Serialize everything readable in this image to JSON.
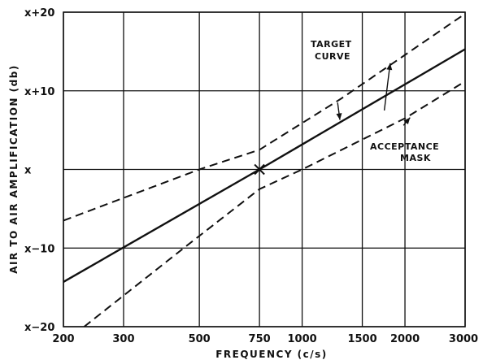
{
  "chart_data": {
    "type": "line",
    "title": "",
    "xlabel": "FREQUENCY (c/s)",
    "ylabel": "AIR TO AIR AMPLIFICATION (db)",
    "x_scale": "log",
    "xlim": [
      200,
      3000
    ],
    "ylim": [
      -20,
      20
    ],
    "grid": true,
    "x_ticks": [
      {
        "value": 200,
        "label": "200"
      },
      {
        "value": 300,
        "label": "300"
      },
      {
        "value": 500,
        "label": "500"
      },
      {
        "value": 750,
        "label": "750"
      },
      {
        "value": 1000,
        "label": "1000"
      },
      {
        "value": 1500,
        "label": "1500"
      },
      {
        "value": 2000,
        "label": "2000"
      },
      {
        "value": 3000,
        "label": "3000"
      }
    ],
    "y_ticks": [
      {
        "value": 20,
        "label": "x+20"
      },
      {
        "value": 10,
        "label": "x+10"
      },
      {
        "value": 0,
        "label": "x"
      },
      {
        "value": -10,
        "label": "x−10"
      },
      {
        "value": -20,
        "label": "x−20"
      }
    ],
    "series": [
      {
        "style": "solid",
        "x": [
          200,
          750,
          3000
        ],
        "y": [
          -14.3,
          0,
          15.3
        ]
      },
      {
        "style": "dashed",
        "x": [
          200,
          500,
          750,
          1300,
          3000
        ],
        "y": [
          -6.5,
          0,
          2.5,
          9,
          19.8
        ]
      },
      {
        "style": "dashed",
        "x": [
          230,
          450,
          750,
          1000,
          2000,
          3000
        ],
        "y": [
          -20,
          -10,
          -2.5,
          0,
          6.5,
          11.2
        ]
      }
    ],
    "marker": {
      "x": 750,
      "y": 0,
      "symbol": "x"
    },
    "annotations": [
      {
        "lines": [
          "TARGET",
          "CURVE"
        ],
        "arrow_from": [
          1270,
          8.5
        ],
        "arrow_to": [
          1290,
          6.3
        ]
      },
      {
        "lines": [
          "ACCEPTANCE",
          "MASK"
        ],
        "arrow_from": [
          1740,
          7.5
        ],
        "arrow_to": [
          1810,
          13.5
        ],
        "arrow2_from": [
          1980,
          5.6
        ],
        "arrow2_to": [
          2070,
          6.6
        ]
      }
    ]
  }
}
